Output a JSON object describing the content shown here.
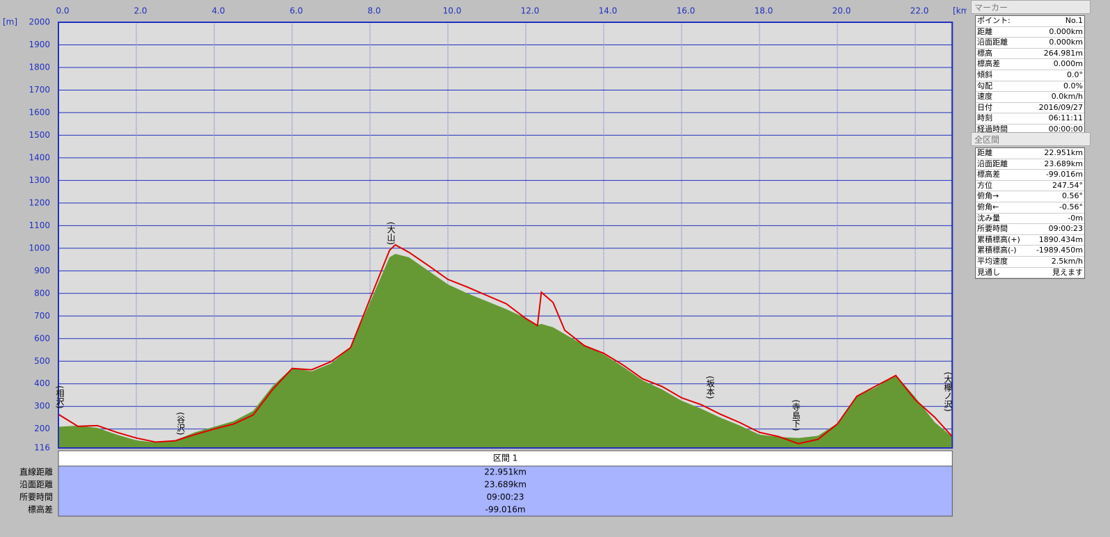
{
  "chart_data": {
    "type": "area",
    "x_unit": "[km]",
    "y_unit": "[m]",
    "xlim": [
      0,
      22.951
    ],
    "ylim": [
      116,
      2000
    ],
    "xticks": [
      {
        "value": 0,
        "label": "0.0"
      },
      {
        "value": 2,
        "label": "2.0"
      },
      {
        "value": 4,
        "label": "4.0"
      },
      {
        "value": 6,
        "label": "6.0"
      },
      {
        "value": 8,
        "label": "8.0"
      },
      {
        "value": 10,
        "label": "10.0"
      },
      {
        "value": 12,
        "label": "12.0"
      },
      {
        "value": 14,
        "label": "14.0"
      },
      {
        "value": 16,
        "label": "16.0"
      },
      {
        "value": 18,
        "label": "18.0"
      },
      {
        "value": 20,
        "label": "20.0"
      },
      {
        "value": 22,
        "label": "22.0"
      }
    ],
    "yticks": [
      116,
      200,
      300,
      400,
      500,
      600,
      700,
      800,
      900,
      1000,
      1100,
      1200,
      1300,
      1400,
      1500,
      1600,
      1700,
      1800,
      1900,
      2000
    ],
    "grid": true,
    "x": [
      0,
      0.5,
      1,
      1.5,
      2,
      2.5,
      3,
      3.5,
      4,
      4.5,
      5,
      5.5,
      6,
      6.5,
      7,
      7.5,
      8,
      8.5,
      8.65,
      9,
      9.5,
      10,
      10.5,
      11,
      11.5,
      12,
      12.3,
      12.4,
      12.7,
      13,
      13.5,
      14,
      14.5,
      15,
      15.5,
      16,
      16.5,
      17,
      17.5,
      18,
      18.5,
      19,
      19.5,
      20,
      20.5,
      21,
      21.5,
      22,
      22.5,
      22.951
    ],
    "series": [
      {
        "style": "area",
        "color": "#669933",
        "values": [
          210,
          215,
          205,
          175,
          150,
          140,
          150,
          185,
          210,
          235,
          280,
          390,
          470,
          455,
          490,
          560,
          760,
          960,
          975,
          960,
          900,
          840,
          800,
          765,
          730,
          690,
          660,
          665,
          650,
          620,
          570,
          530,
          475,
          415,
          375,
          325,
          290,
          250,
          215,
          175,
          165,
          160,
          170,
          225,
          345,
          385,
          440,
          340,
          230,
          165
        ]
      },
      {
        "style": "line",
        "color": "#e00000",
        "values": [
          265,
          212,
          215,
          185,
          160,
          142,
          148,
          175,
          200,
          222,
          262,
          375,
          468,
          462,
          498,
          560,
          775,
          990,
          1015,
          982,
          923,
          862,
          828,
          791,
          754,
          689,
          658,
          805,
          760,
          637,
          569,
          535,
          483,
          422,
          388,
          338,
          308,
          265,
          228,
          185,
          166,
          135,
          154,
          222,
          345,
          391,
          437,
          329,
          252,
          166
        ]
      }
    ],
    "annotations": [
      {
        "text": "(相沢)",
        "x": 0
      },
      {
        "text": "(谷沢)",
        "x": 3.1
      },
      {
        "text": "(大山)",
        "x": 8.5
      },
      {
        "text": "(坂本)",
        "x": 16.7
      },
      {
        "text": "(寺島下)",
        "x": 18.9
      },
      {
        "text": "(大欅ノ沢)",
        "x": 22.8
      }
    ]
  },
  "segment_table": {
    "header": "区間 1",
    "rows": [
      [
        "直線距離",
        "22.951km"
      ],
      [
        "沿面距離",
        "23.689km"
      ],
      [
        "所要時間",
        "09:00:23"
      ],
      [
        "標高差",
        "-99.016m"
      ]
    ]
  },
  "marker_panel": {
    "title": "マーカー",
    "rows": [
      [
        "ポイント:",
        "No.1"
      ],
      [
        "距離",
        "0.000km"
      ],
      [
        "沿面距離",
        "0.000km"
      ],
      [
        "標高",
        "264.981m"
      ],
      [
        "標高差",
        "0.000m"
      ],
      [
        "傾斜",
        "0.0°"
      ],
      [
        "勾配",
        "0.0%"
      ],
      [
        "速度",
        "0.0km/h"
      ],
      [
        "日付",
        "2016/09/27"
      ],
      [
        "時刻",
        "06:11:11"
      ],
      [
        "経過時間",
        "00:00:00"
      ]
    ]
  },
  "total_panel": {
    "title": "全区間",
    "rows": [
      [
        "距離",
        "22.951km"
      ],
      [
        "沿面距離",
        "23.689km"
      ],
      [
        "標高差",
        "-99.016m"
      ],
      [
        "方位",
        "247.54°"
      ],
      [
        "俯角→",
        "0.56°"
      ],
      [
        "俯角←",
        "-0.56°"
      ],
      [
        "沈み量",
        "-0m"
      ],
      [
        "所要時間",
        "09:00:23"
      ],
      [
        "累積標高(+)",
        "1890.434m"
      ],
      [
        "累積標高(-)",
        "-1989.450m"
      ],
      [
        "平均速度",
        "2.5km/h"
      ],
      [
        "見通し",
        "見えます"
      ]
    ]
  }
}
